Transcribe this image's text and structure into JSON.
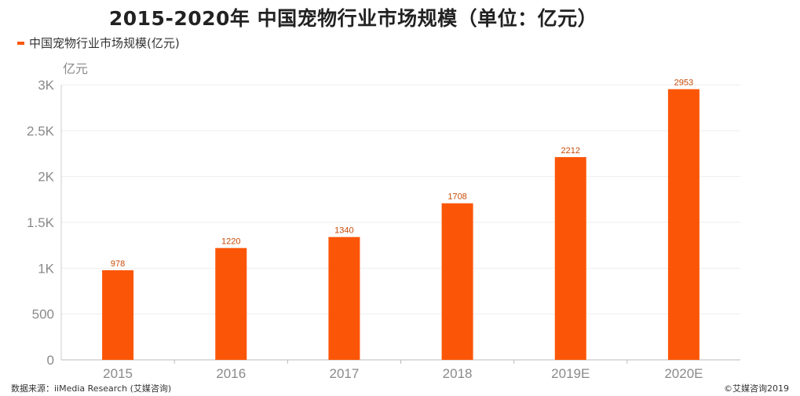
{
  "title": "2015-2020年 中国宠物行业市场规模（单位：亿元）",
  "legend": {
    "label": "中国宠物行业市场规模(亿元)"
  },
  "source": "数据来源：iiMedia Research (艾媒咨询)",
  "copyright": "©艾媒咨询2019",
  "colors": {
    "bar": "#fb5607",
    "value_label": "#c84a05",
    "axis_text": "#8a8a8a",
    "grid": "#eeeeee"
  },
  "chart_data": {
    "type": "bar",
    "title": "2015-2020年 中国宠物行业市场规模（单位：亿元）",
    "xlabel": "",
    "ylabel": "亿元",
    "categories": [
      "2015",
      "2016",
      "2017",
      "2018",
      "2019E",
      "2020E"
    ],
    "series": [
      {
        "name": "中国宠物行业市场规模(亿元)",
        "values": [
          978,
          1220,
          1340,
          1708,
          2212,
          2953
        ]
      }
    ],
    "ylim": [
      0,
      3000
    ],
    "yticks": [
      0,
      500,
      1000,
      1500,
      2000,
      2500,
      3000
    ],
    "ytick_labels": [
      "0",
      "500",
      "1K",
      "1.5K",
      "2K",
      "2.5K",
      "3K"
    ],
    "grid": true,
    "legend_position": "top-left"
  }
}
